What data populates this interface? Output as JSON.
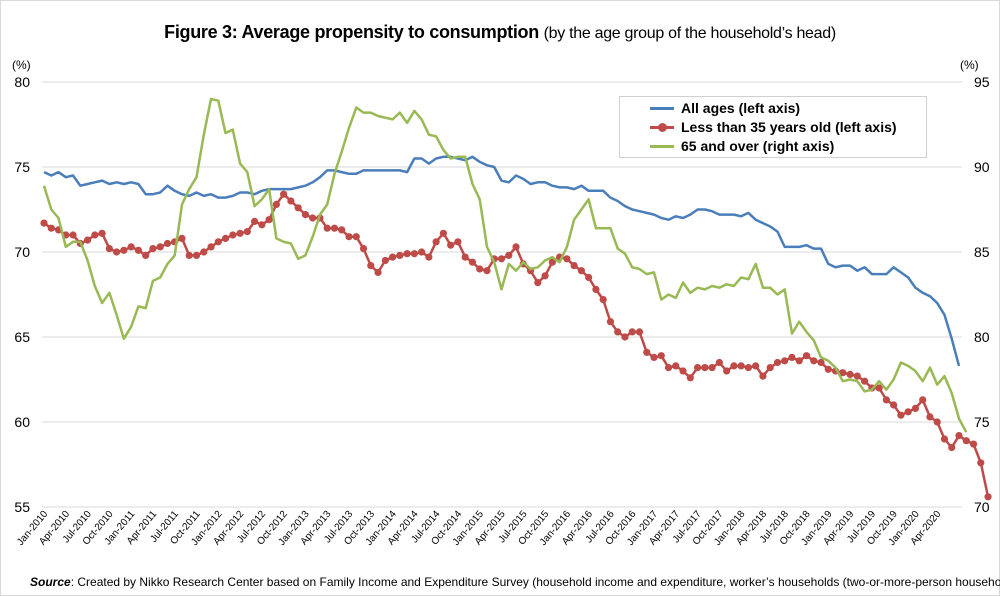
{
  "title": {
    "main": "Figure 3: Average propensity to consumption",
    "sub": "(by the age group of the household’s head)"
  },
  "source": {
    "label": "Source",
    "text": ": Created by Nikko Research Center based on Family Income and Expenditure Survey  (household income and expenditure, worker’s households (two-or-more-person households))"
  },
  "chart_data": {
    "type": "line",
    "title": "Figure 3: Average propensity to consumption (by the age group of the household’s head)",
    "xlabel": "",
    "ylabel": "(%)",
    "y2label": "(%)",
    "ylim": [
      55,
      80
    ],
    "y2lim": [
      70,
      95
    ],
    "yticks": [
      55,
      60,
      65,
      70,
      75,
      80
    ],
    "y2ticks": [
      70,
      75,
      80,
      85,
      90,
      95
    ],
    "grid": true,
    "legend_position": "top-right",
    "x_start": "Jan-2010",
    "x_end": "Jun-2020",
    "x_tick_labels": [
      "Jan-2010",
      "Apr-2010",
      "Jul-2010",
      "Oct-2010",
      "Jan-2011",
      "Apr-2011",
      "Jul-2011",
      "Oct-2011",
      "Jan-2012",
      "Apr-2012",
      "Jul-2012",
      "Oct-2012",
      "Jan-2013",
      "Apr-2013",
      "Jul-2013",
      "Oct-2013",
      "Jan-2014",
      "Apr-2014",
      "Jul-2014",
      "Oct-2014",
      "Jan-2015",
      "Apr-2015",
      "Jul-2015",
      "Oct-2015",
      "Jan-2016",
      "Apr-2016",
      "Jul-2016",
      "Oct-2016",
      "Jan-2017",
      "Apr-2017",
      "Jul-2017",
      "Oct-2017",
      "Jan-2018",
      "Apr-2018",
      "Jul-2018",
      "Oct-2018",
      "Jan-2019",
      "Apr-2019",
      "Jul-2019",
      "Oct-2019",
      "Jan-2020",
      "Apr-2020"
    ],
    "series": [
      {
        "name": "All ages (left axis)",
        "axis": "left",
        "color": "#4a7ebb",
        "marker": false,
        "values": [
          74.7,
          74.5,
          74.7,
          74.4,
          74.5,
          73.9,
          74.0,
          74.1,
          74.2,
          74.0,
          74.1,
          74.0,
          74.1,
          74.0,
          73.4,
          73.4,
          73.5,
          73.9,
          73.6,
          73.4,
          73.3,
          73.5,
          73.3,
          73.4,
          73.2,
          73.2,
          73.3,
          73.5,
          73.5,
          73.4,
          73.6,
          73.7,
          73.7,
          73.7,
          73.7,
          73.8,
          73.9,
          74.1,
          74.4,
          74.8,
          74.8,
          74.7,
          74.6,
          74.6,
          74.8,
          74.8,
          74.8,
          74.8,
          74.8,
          74.8,
          74.7,
          75.5,
          75.5,
          75.2,
          75.5,
          75.6,
          75.6,
          75.5,
          75.4,
          75.6,
          75.3,
          75.1,
          75.0,
          74.2,
          74.1,
          74.5,
          74.3,
          74.0,
          74.1,
          74.1,
          73.9,
          73.8,
          73.8,
          73.7,
          73.9,
          73.6,
          73.6,
          73.6,
          73.2,
          73.0,
          72.7,
          72.5,
          72.4,
          72.3,
          72.2,
          72.0,
          71.9,
          72.1,
          72.0,
          72.2,
          72.5,
          72.5,
          72.4,
          72.2,
          72.2,
          72.2,
          72.1,
          72.3,
          71.9,
          71.7,
          71.5,
          71.2,
          70.3,
          70.3,
          70.3,
          70.4,
          70.2,
          70.2,
          69.3,
          69.1,
          69.2,
          69.2,
          68.9,
          69.1,
          68.7,
          68.7,
          68.7,
          69.1,
          68.8,
          68.5,
          67.9,
          67.6,
          67.4,
          67.0,
          66.3,
          64.9,
          63.3
        ]
      },
      {
        "name": "Less than 35 years old (left axis)",
        "axis": "left",
        "color": "#be4b48",
        "marker": true,
        "values": [
          71.7,
          71.4,
          71.3,
          71.0,
          71.0,
          70.5,
          70.7,
          71.0,
          71.1,
          70.2,
          70.0,
          70.1,
          70.3,
          70.1,
          69.8,
          70.2,
          70.3,
          70.5,
          70.6,
          70.8,
          69.8,
          69.8,
          70.0,
          70.3,
          70.6,
          70.8,
          71.0,
          71.1,
          71.2,
          71.8,
          71.6,
          71.9,
          72.8,
          73.4,
          73.0,
          72.6,
          72.2,
          72.0,
          72.0,
          71.4,
          71.4,
          71.3,
          70.9,
          70.9,
          70.2,
          69.2,
          68.8,
          69.5,
          69.7,
          69.8,
          69.9,
          69.9,
          70.0,
          69.7,
          70.6,
          71.1,
          70.4,
          70.6,
          69.7,
          69.4,
          69.0,
          68.9,
          69.6,
          69.6,
          69.8,
          70.3,
          69.3,
          68.9,
          68.2,
          68.6,
          69.4,
          69.7,
          69.6,
          69.2,
          68.9,
          68.5,
          67.8,
          67.2,
          65.9,
          65.3,
          65.0,
          65.3,
          65.3,
          64.1,
          63.8,
          63.9,
          63.2,
          63.3,
          63.0,
          62.6,
          63.2,
          63.2,
          63.2,
          63.5,
          63.0,
          63.3,
          63.3,
          63.2,
          63.3,
          62.7,
          63.2,
          63.5,
          63.6,
          63.8,
          63.6,
          63.9,
          63.6,
          63.5,
          63.1,
          63.0,
          62.9,
          62.8,
          62.7,
          62.4,
          62.0,
          62.0,
          61.3,
          61.0,
          60.4,
          60.6,
          60.8,
          61.3,
          60.3,
          60.0,
          59.0,
          58.5,
          59.2,
          58.9,
          58.7,
          57.6,
          55.6
        ]
      },
      {
        "name": "65 and over (right axis)",
        "axis": "right",
        "color": "#98b954",
        "marker": false,
        "values": [
          88.9,
          87.5,
          87.0,
          85.3,
          85.6,
          85.6,
          84.5,
          83.0,
          82.0,
          82.6,
          81.3,
          79.9,
          80.6,
          81.8,
          81.7,
          83.3,
          83.5,
          84.3,
          84.8,
          87.8,
          88.7,
          89.4,
          91.9,
          94.0,
          93.9,
          92.0,
          92.2,
          90.2,
          89.7,
          87.7,
          88.1,
          88.7,
          85.8,
          85.6,
          85.5,
          84.6,
          84.8,
          85.9,
          87.2,
          87.8,
          89.6,
          90.9,
          92.3,
          93.5,
          93.2,
          93.2,
          93.0,
          92.9,
          92.8,
          93.2,
          92.6,
          93.3,
          92.8,
          91.9,
          91.8,
          91.0,
          90.5,
          90.6,
          90.6,
          89.0,
          88.1,
          85.3,
          84.4,
          82.8,
          84.3,
          83.9,
          84.4,
          84.0,
          84.1,
          84.5,
          84.7,
          84.4,
          85.3,
          86.9,
          87.5,
          88.1,
          86.4,
          86.4,
          86.4,
          85.2,
          84.9,
          84.1,
          84.0,
          83.7,
          83.8,
          82.2,
          82.5,
          82.3,
          83.2,
          82.6,
          82.9,
          82.8,
          83.0,
          82.9,
          83.1,
          83.0,
          83.5,
          83.4,
          84.3,
          82.9,
          82.9,
          82.5,
          82.8,
          80.2,
          80.9,
          80.3,
          79.8,
          78.8,
          78.6,
          78.2,
          77.4,
          77.5,
          77.4,
          76.8,
          76.9,
          77.4,
          76.9,
          77.5,
          78.5,
          78.3,
          78.0,
          77.4,
          78.2,
          77.2,
          77.7,
          76.7,
          75.2,
          74.4
        ]
      }
    ]
  }
}
